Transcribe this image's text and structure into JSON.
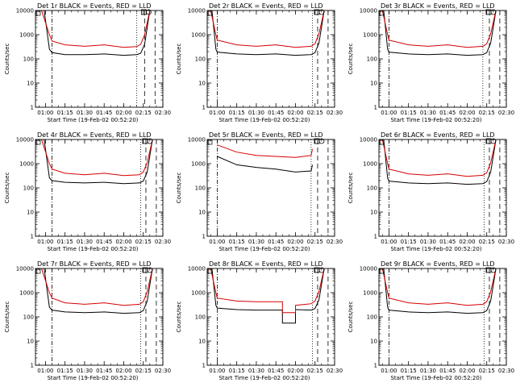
{
  "chart_data": [
    {
      "type": "line",
      "title": "Det 1r BLACK = Events, RED = LLD",
      "xlabel": "Start Time (19-Feb-02 00:52:20)",
      "ylabel": "Counts/sec",
      "log_y": true,
      "ylim": [
        1,
        10000
      ],
      "xlim": [
        "00:52:20",
        "02:30"
      ],
      "x_ticks": [
        "01:00",
        "01:15",
        "01:30",
        "01:45",
        "02:00",
        "02:15",
        "02:30"
      ],
      "y_ticks": [
        "1",
        "10",
        "100",
        "1000",
        "10000"
      ],
      "vlines": [
        {
          "time": "01:05",
          "style": "dash-dot"
        },
        {
          "time": "02:10",
          "style": "dotted"
        },
        {
          "time": "02:16",
          "style": "long-dash"
        },
        {
          "time": "02:24",
          "style": "long-dash"
        }
      ],
      "series": [
        {
          "name": "Events",
          "color": "#000000",
          "x": [
            "00:52",
            "00:59",
            "01:03",
            "01:05",
            "01:15",
            "01:30",
            "01:45",
            "02:00",
            "02:10",
            "02:13",
            "02:16",
            "02:20"
          ],
          "y": [
            10000,
            10000,
            250,
            180,
            150,
            150,
            160,
            140,
            150,
            170,
            400,
            10000
          ]
        },
        {
          "name": "LLD",
          "color": "#d40000",
          "x": [
            "00:52",
            "00:57",
            "01:03",
            "01:05",
            "01:15",
            "01:30",
            "01:45",
            "02:00",
            "02:10",
            "02:13",
            "02:16",
            "02:20"
          ],
          "y": [
            10000,
            10000,
            1000,
            550,
            380,
            330,
            380,
            300,
            320,
            400,
            1000,
            10000
          ]
        }
      ]
    },
    {
      "type": "line",
      "title": "Det 2r BLACK = Events, RED = LLD",
      "xlabel": "Start Time (19-Feb-02 00:52:20)",
      "ylabel": "Counts/sec",
      "log_y": true,
      "ylim": [
        1,
        10000
      ],
      "xlim": [
        "00:52:20",
        "02:30"
      ],
      "x_ticks": [
        "01:00",
        "01:15",
        "01:30",
        "01:45",
        "02:00",
        "02:15",
        "02:30"
      ],
      "y_ticks": [
        "1",
        "10",
        "100",
        "1000",
        "10000"
      ],
      "vlines": [
        {
          "time": "01:00",
          "style": "dash-dot"
        },
        {
          "time": "02:13",
          "style": "dotted"
        },
        {
          "time": "02:17",
          "style": "long-dash"
        },
        {
          "time": "02:25",
          "style": "long-dash"
        }
      ],
      "series": [
        {
          "name": "Events",
          "color": "#000000",
          "x": [
            "00:52",
            "00:56",
            "00:59",
            "01:00",
            "01:15",
            "01:30",
            "01:45",
            "02:00",
            "02:12",
            "02:15",
            "02:18",
            "02:22"
          ],
          "y": [
            10000,
            10000,
            250,
            190,
            160,
            150,
            160,
            140,
            150,
            180,
            450,
            10000
          ]
        },
        {
          "name": "LLD",
          "color": "#d40000",
          "x": [
            "00:52",
            "00:55",
            "00:59",
            "01:00",
            "01:15",
            "01:30",
            "01:45",
            "02:00",
            "02:12",
            "02:15",
            "02:18",
            "02:22"
          ],
          "y": [
            10000,
            10000,
            1000,
            600,
            380,
            330,
            380,
            300,
            330,
            420,
            1100,
            10000
          ]
        }
      ]
    },
    {
      "type": "line",
      "title": "Det 3r BLACK = Events, RED = LLD",
      "xlabel": "Start Time (19-Feb-02 00:52:20)",
      "ylabel": "Counts/sec",
      "log_y": true,
      "ylim": [
        1,
        10000
      ],
      "xlim": [
        "00:52:20",
        "02:30"
      ],
      "x_ticks": [
        "01:00",
        "01:15",
        "01:30",
        "01:45",
        "02:00",
        "02:15",
        "02:30"
      ],
      "y_ticks": [
        "1",
        "10",
        "100",
        "1000",
        "10000"
      ],
      "vlines": [
        {
          "time": "01:00",
          "style": "dash-dot"
        },
        {
          "time": "02:12",
          "style": "dotted"
        },
        {
          "time": "02:17",
          "style": "long-dash"
        },
        {
          "time": "02:25",
          "style": "long-dash"
        }
      ],
      "series": [
        {
          "name": "Events",
          "color": "#000000",
          "x": [
            "00:52",
            "00:56",
            "00:59",
            "01:00",
            "01:15",
            "01:30",
            "01:45",
            "02:00",
            "02:12",
            "02:15",
            "02:18",
            "02:22"
          ],
          "y": [
            10000,
            10000,
            250,
            190,
            160,
            150,
            160,
            140,
            150,
            180,
            450,
            10000
          ]
        },
        {
          "name": "LLD",
          "color": "#d40000",
          "x": [
            "00:52",
            "00:55",
            "00:59",
            "01:00",
            "01:15",
            "01:30",
            "01:45",
            "02:00",
            "02:12",
            "02:15",
            "02:18",
            "02:22"
          ],
          "y": [
            10000,
            10000,
            1000,
            600,
            380,
            330,
            380,
            300,
            330,
            420,
            1100,
            10000
          ]
        }
      ]
    },
    {
      "type": "line",
      "title": "Det 4r BLACK = Events, RED = LLD",
      "xlabel": "Start Time (19-Feb-02 00:52:20)",
      "ylabel": "Counts/sec",
      "log_y": true,
      "ylim": [
        1,
        10000
      ],
      "xlim": [
        "00:52:20",
        "02:30"
      ],
      "x_ticks": [
        "01:00",
        "01:15",
        "01:30",
        "01:45",
        "02:00",
        "02:15",
        "02:30"
      ],
      "y_ticks": [
        "1",
        "10",
        "100",
        "1000",
        "10000"
      ],
      "vlines": [
        {
          "time": "01:05",
          "style": "dash-dot"
        },
        {
          "time": "02:13",
          "style": "dotted"
        },
        {
          "time": "02:17",
          "style": "long-dash"
        },
        {
          "time": "02:25",
          "style": "long-dash"
        }
      ],
      "series": [
        {
          "name": "Events",
          "color": "#000000",
          "x": [
            "00:52",
            "00:59",
            "01:03",
            "01:05",
            "01:15",
            "01:30",
            "01:45",
            "02:00",
            "02:12",
            "02:15",
            "02:18",
            "02:22"
          ],
          "y": [
            10000,
            10000,
            260,
            200,
            170,
            160,
            170,
            150,
            160,
            190,
            450,
            10000
          ]
        },
        {
          "name": "LLD",
          "color": "#d40000",
          "x": [
            "00:52",
            "00:57",
            "01:03",
            "01:05",
            "01:15",
            "01:30",
            "01:45",
            "02:00",
            "02:12",
            "02:15",
            "02:18",
            "02:22"
          ],
          "y": [
            10000,
            10000,
            1000,
            600,
            400,
            350,
            400,
            320,
            350,
            450,
            1100,
            10000
          ]
        }
      ]
    },
    {
      "type": "line",
      "title": "Det 5r BLACK = Events, RED = LLD",
      "xlabel": "Start Time (19-Feb-02 00:52:20)",
      "ylabel": "Counts/sec",
      "log_y": true,
      "ylim": [
        1,
        10000
      ],
      "xlim": [
        "00:52:20",
        "02:30"
      ],
      "x_ticks": [
        "01:00",
        "01:15",
        "01:30",
        "01:45",
        "02:00",
        "02:15",
        "02:30"
      ],
      "y_ticks": [
        "1",
        "10",
        "100",
        "1000",
        "10000"
      ],
      "vlines": [
        {
          "time": "01:00",
          "style": "dash-dot"
        },
        {
          "time": "02:12",
          "style": "dotted"
        },
        {
          "time": "02:17",
          "style": "long-dash"
        },
        {
          "time": "02:25",
          "style": "long-dash"
        }
      ],
      "series": [
        {
          "name": "Events",
          "color": "#000000",
          "x": [
            "01:00",
            "01:15",
            "01:30",
            "01:45",
            "02:00",
            "02:12",
            "02:13"
          ],
          "y": [
            2000,
            900,
            700,
            600,
            450,
            500,
            900
          ]
        },
        {
          "name": "LLD",
          "color": "#d40000",
          "x": [
            "01:00",
            "01:15",
            "01:30",
            "01:45",
            "02:00",
            "02:12",
            "02:13"
          ],
          "y": [
            6000,
            3000,
            2200,
            2000,
            1800,
            2200,
            4000
          ]
        }
      ]
    },
    {
      "type": "line",
      "title": "Det 6r BLACK = Events, RED = LLD",
      "xlabel": "Start Time (19-Feb-02 00:52:20)",
      "ylabel": "Counts/sec",
      "log_y": true,
      "ylim": [
        1,
        10000
      ],
      "xlim": [
        "00:52:20",
        "02:30"
      ],
      "x_ticks": [
        "01:00",
        "01:15",
        "01:30",
        "01:45",
        "02:00",
        "02:15",
        "02:30"
      ],
      "y_ticks": [
        "1",
        "10",
        "100",
        "1000",
        "10000"
      ],
      "vlines": [
        {
          "time": "01:00",
          "style": "dash-dot"
        },
        {
          "time": "02:13",
          "style": "dotted"
        },
        {
          "time": "02:17",
          "style": "long-dash"
        },
        {
          "time": "02:25",
          "style": "long-dash"
        }
      ],
      "series": [
        {
          "name": "Events",
          "color": "#000000",
          "x": [
            "00:52",
            "00:56",
            "00:59",
            "01:00",
            "01:15",
            "01:30",
            "01:45",
            "02:00",
            "02:12",
            "02:15",
            "02:18",
            "02:22"
          ],
          "y": [
            10000,
            10000,
            250,
            190,
            160,
            150,
            160,
            140,
            150,
            180,
            450,
            10000
          ]
        },
        {
          "name": "LLD",
          "color": "#d40000",
          "x": [
            "00:52",
            "00:55",
            "00:59",
            "01:00",
            "01:15",
            "01:30",
            "01:45",
            "02:00",
            "02:12",
            "02:15",
            "02:18",
            "02:22"
          ],
          "y": [
            10000,
            10000,
            1000,
            600,
            380,
            330,
            380,
            300,
            330,
            420,
            1100,
            10000
          ]
        }
      ]
    },
    {
      "type": "line",
      "title": "Det 7r BLACK = Events, RED = LLD",
      "xlabel": "Start Time (19-Feb-02 00:52:20)",
      "ylabel": "Counts/sec",
      "log_y": true,
      "ylim": [
        1,
        10000
      ],
      "xlim": [
        "00:52:20",
        "02:30"
      ],
      "x_ticks": [
        "01:00",
        "01:15",
        "01:30",
        "01:45",
        "02:00",
        "02:15",
        "02:30"
      ],
      "y_ticks": [
        "1",
        "10",
        "100",
        "1000",
        "10000"
      ],
      "vlines": [
        {
          "time": "01:05",
          "style": "dash-dot"
        },
        {
          "time": "02:13",
          "style": "dotted"
        },
        {
          "time": "02:17",
          "style": "long-dash"
        },
        {
          "time": "02:25",
          "style": "long-dash"
        }
      ],
      "series": [
        {
          "name": "Events",
          "color": "#000000",
          "x": [
            "00:52",
            "00:59",
            "01:03",
            "01:05",
            "01:15",
            "01:30",
            "01:45",
            "02:00",
            "02:12",
            "02:15",
            "02:18",
            "02:22"
          ],
          "y": [
            10000,
            10000,
            250,
            190,
            160,
            150,
            160,
            140,
            150,
            180,
            450,
            10000
          ]
        },
        {
          "name": "LLD",
          "color": "#d40000",
          "x": [
            "00:52",
            "00:57",
            "01:03",
            "01:05",
            "01:15",
            "01:30",
            "01:45",
            "02:00",
            "02:12",
            "02:15",
            "02:18",
            "02:22"
          ],
          "y": [
            10000,
            10000,
            1000,
            600,
            380,
            330,
            380,
            300,
            330,
            420,
            1100,
            10000
          ]
        }
      ]
    },
    {
      "type": "line",
      "title": "Det 8r BLACK = Events, RED = LLD",
      "xlabel": "Start Time (19-Feb-02 00:52:20)",
      "ylabel": "Counts/sec",
      "log_y": true,
      "ylim": [
        1,
        10000
      ],
      "xlim": [
        "00:52:20",
        "02:30"
      ],
      "x_ticks": [
        "01:00",
        "01:15",
        "01:30",
        "01:45",
        "02:00",
        "02:15",
        "02:30"
      ],
      "y_ticks": [
        "1",
        "10",
        "100",
        "1000",
        "10000"
      ],
      "vlines": [
        {
          "time": "01:00",
          "style": "dash-dot"
        },
        {
          "time": "02:13",
          "style": "dotted"
        },
        {
          "time": "02:17",
          "style": "long-dash"
        },
        {
          "time": "02:25",
          "style": "long-dash"
        }
      ],
      "series": [
        {
          "name": "Events",
          "color": "#000000",
          "x": [
            "00:52",
            "00:56",
            "00:59",
            "01:00",
            "01:15",
            "01:30",
            "01:45",
            "01:50",
            "01:50",
            "02:00",
            "02:00",
            "02:12",
            "02:15",
            "02:18",
            "02:22"
          ],
          "y": [
            10000,
            10000,
            300,
            230,
            200,
            190,
            190,
            190,
            55,
            55,
            200,
            190,
            220,
            500,
            10000
          ]
        },
        {
          "name": "LLD",
          "color": "#d40000",
          "x": [
            "00:52",
            "00:55",
            "00:59",
            "01:00",
            "01:15",
            "01:30",
            "01:45",
            "01:50",
            "01:50",
            "02:00",
            "02:00",
            "02:12",
            "02:15",
            "02:18",
            "02:22"
          ],
          "y": [
            10000,
            10000,
            1000,
            600,
            450,
            420,
            420,
            420,
            150,
            150,
            300,
            350,
            450,
            1100,
            10000
          ]
        }
      ]
    },
    {
      "type": "line",
      "title": "Det 9r BLACK = Events, RED = LLD",
      "xlabel": "Start Time (19-Feb-02 00:52:20)",
      "ylabel": "Counts/sec",
      "log_y": true,
      "ylim": [
        1,
        10000
      ],
      "xlim": [
        "00:52:20",
        "02:30"
      ],
      "x_ticks": [
        "01:00",
        "01:15",
        "01:30",
        "01:45",
        "02:00",
        "02:15",
        "02:30"
      ],
      "y_ticks": [
        "1",
        "10",
        "100",
        "1000",
        "10000"
      ],
      "vlines": [
        {
          "time": "01:00",
          "style": "dash-dot"
        },
        {
          "time": "02:13",
          "style": "dotted"
        },
        {
          "time": "02:17",
          "style": "long-dash"
        },
        {
          "time": "02:25",
          "style": "long-dash"
        }
      ],
      "series": [
        {
          "name": "Events",
          "color": "#000000",
          "x": [
            "00:52",
            "00:56",
            "00:59",
            "01:00",
            "01:15",
            "01:30",
            "01:45",
            "02:00",
            "02:12",
            "02:15",
            "02:18",
            "02:22"
          ],
          "y": [
            10000,
            10000,
            250,
            190,
            160,
            150,
            160,
            140,
            150,
            180,
            450,
            10000
          ]
        },
        {
          "name": "LLD",
          "color": "#d40000",
          "x": [
            "00:52",
            "00:55",
            "00:59",
            "01:00",
            "01:15",
            "01:30",
            "01:45",
            "02:00",
            "02:12",
            "02:15",
            "02:18",
            "02:22"
          ],
          "y": [
            10000,
            10000,
            1000,
            600,
            380,
            330,
            380,
            300,
            330,
            420,
            1100,
            10000
          ]
        }
      ]
    }
  ]
}
